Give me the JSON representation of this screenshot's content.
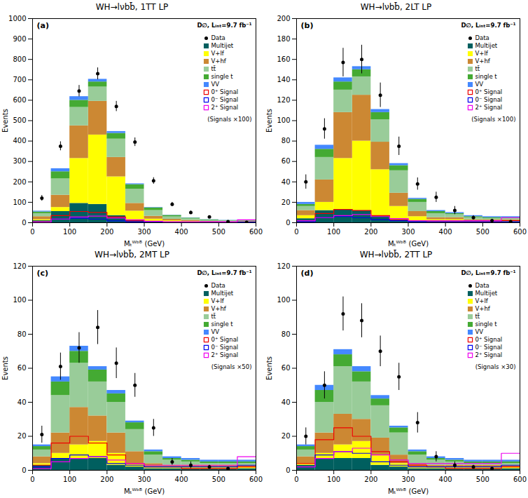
{
  "chart_data": [
    {
      "type": "bar",
      "stacked": true,
      "grid": false,
      "legend": "upper right",
      "title": "WH→lνbb̄, 1TT LP",
      "xlabel": "Mₜᵂᵇᵇ̄ (GeV)",
      "ylabel": "Events",
      "bins": [
        0,
        50,
        100,
        150,
        200,
        250,
        300,
        350,
        400,
        450,
        500,
        550,
        600
      ],
      "xlim": [
        0,
        600
      ],
      "xticks": [
        0,
        100,
        200,
        300,
        400,
        500,
        600
      ],
      "ylim": [
        0,
        1000
      ],
      "yticks": [
        0,
        100,
        200,
        300,
        400,
        500,
        600,
        700,
        800,
        900,
        1000
      ],
      "series": [
        {
          "name": "Data",
          "type": "scatter",
          "marker": "o",
          "color": "#000000",
          "values": [
            120,
            375,
            645,
            730,
            570,
            395,
            205,
            90,
            50,
            28,
            5,
            2
          ],
          "errors": [
            14,
            22,
            28,
            29,
            25,
            21,
            16,
            10,
            8,
            6,
            3,
            2
          ]
        },
        {
          "name": "Multijet",
          "type": "bar",
          "color": "#005f5f",
          "values": [
            10,
            55,
            95,
            90,
            35,
            12,
            6,
            4,
            3,
            2,
            2,
            2
          ]
        },
        {
          "name": "V+lf",
          "type": "bar",
          "color": "#ffff00",
          "values": [
            5,
            20,
            220,
            340,
            190,
            45,
            12,
            6,
            4,
            2,
            2,
            2
          ]
        },
        {
          "name": "V+hf",
          "type": "bar",
          "color": "#cc8833",
          "values": [
            15,
            60,
            160,
            165,
            95,
            38,
            14,
            7,
            5,
            3,
            2,
            2
          ]
        },
        {
          "name": "tt̄",
          "type": "bar",
          "color": "#99cc99",
          "values": [
            15,
            80,
            90,
            70,
            90,
            70,
            28,
            12,
            7,
            4,
            3,
            2
          ]
        },
        {
          "name": "single t",
          "type": "bar",
          "color": "#44aa33",
          "values": [
            8,
            35,
            35,
            25,
            28,
            22,
            13,
            7,
            4,
            3,
            2,
            2
          ]
        },
        {
          "name": "VV",
          "type": "bar",
          "color": "#4488ff",
          "values": [
            4,
            15,
            18,
            13,
            9,
            4,
            2,
            1,
            1,
            1,
            1,
            1
          ]
        },
        {
          "name": "0⁺ Signal",
          "type": "step",
          "color": "#ee0000",
          "values": [
            4,
            35,
            55,
            50,
            28,
            9,
            4,
            2,
            2,
            2,
            2,
            4
          ]
        },
        {
          "name": "0⁻ Signal",
          "type": "step",
          "color": "#0000ee",
          "values": [
            2,
            18,
            22,
            18,
            9,
            4,
            2,
            2,
            2,
            2,
            2,
            3
          ]
        },
        {
          "name": "2⁺ Signal",
          "type": "step",
          "color": "#ee00ee",
          "values": [
            4,
            18,
            28,
            32,
            23,
            14,
            7,
            5,
            5,
            5,
            5,
            14
          ]
        }
      ],
      "annotations": [
        "(a)",
        "D∅, Lᵢₙₜ=9.7 fb⁻¹",
        "(Signals ×100)"
      ]
    },
    {
      "type": "bar",
      "stacked": true,
      "grid": false,
      "legend": "upper right",
      "title": "WH→lνbb̄, 2LT LP",
      "xlabel": "Mₜᵂᵇᵇ̄ (GeV)",
      "ylabel": "Events",
      "bins": [
        0,
        50,
        100,
        150,
        200,
        250,
        300,
        350,
        400,
        450,
        500,
        550,
        600
      ],
      "xlim": [
        0,
        600
      ],
      "xticks": [
        0,
        100,
        200,
        300,
        400,
        500,
        600
      ],
      "ylim": [
        0,
        200
      ],
      "yticks": [
        0,
        20,
        40,
        60,
        80,
        100,
        120,
        140,
        160,
        180,
        200
      ],
      "series": [
        {
          "name": "Data",
          "type": "scatter",
          "marker": "o",
          "color": "#000000",
          "values": [
            40,
            92,
            157,
            160,
            125,
            75,
            38,
            25,
            12,
            5,
            2,
            1
          ],
          "errors": [
            7,
            10,
            14,
            14,
            12,
            9,
            6,
            5,
            4,
            2,
            1,
            1
          ]
        },
        {
          "name": "Multijet",
          "type": "bar",
          "color": "#005f5f",
          "values": [
            4,
            12,
            13,
            12,
            7,
            3,
            2,
            1,
            1,
            1,
            1,
            1
          ]
        },
        {
          "name": "V+lf",
          "type": "bar",
          "color": "#ffff00",
          "values": [
            3,
            8,
            50,
            68,
            45,
            13,
            4,
            2,
            2,
            1,
            1,
            1
          ]
        },
        {
          "name": "V+hf",
          "type": "bar",
          "color": "#cc8833",
          "values": [
            5,
            22,
            45,
            45,
            27,
            13,
            5,
            2,
            2,
            1,
            1,
            1
          ]
        },
        {
          "name": "tt̄",
          "type": "bar",
          "color": "#99cc99",
          "values": [
            4,
            22,
            22,
            18,
            22,
            22,
            9,
            4,
            3,
            2,
            1,
            1
          ]
        },
        {
          "name": "single t",
          "type": "bar",
          "color": "#44aa33",
          "values": [
            2,
            8,
            8,
            7,
            7,
            5,
            3,
            2,
            1,
            1,
            1,
            1
          ]
        },
        {
          "name": "VV",
          "type": "bar",
          "color": "#4488ff",
          "values": [
            2,
            4,
            4,
            3,
            3,
            2,
            1,
            1,
            1,
            1,
            1,
            1
          ]
        },
        {
          "name": "0⁺ Signal",
          "type": "step",
          "color": "#ee0000",
          "values": [
            2,
            9,
            13,
            12,
            7,
            3,
            2,
            1,
            1,
            1,
            1,
            2
          ]
        },
        {
          "name": "0⁻ Signal",
          "type": "step",
          "color": "#0000ee",
          "values": [
            1,
            5,
            6,
            5,
            3,
            2,
            1,
            1,
            1,
            1,
            1,
            1
          ]
        },
        {
          "name": "2⁺ Signal",
          "type": "step",
          "color": "#ee00ee",
          "values": [
            2,
            5,
            7,
            8,
            6,
            4,
            2,
            2,
            2,
            2,
            2,
            5
          ]
        }
      ],
      "annotations": [
        "(b)",
        "D∅, Lᵢₙₜ=9.7 fb⁻¹",
        "(Signals ×100)"
      ]
    },
    {
      "type": "bar",
      "stacked": true,
      "grid": false,
      "legend": "upper right",
      "title": "WH→lνbb̄, 2MT LP",
      "xlabel": "Mₜᵂᵇᵇ̄ (GeV)",
      "ylabel": "Events",
      "bins": [
        0,
        50,
        100,
        150,
        200,
        250,
        300,
        350,
        400,
        450,
        500,
        550,
        600
      ],
      "xlim": [
        0,
        600
      ],
      "xticks": [
        0,
        100,
        200,
        300,
        400,
        500,
        600
      ],
      "ylim": [
        0,
        120
      ],
      "yticks": [
        0,
        20,
        40,
        60,
        80,
        100,
        120
      ],
      "series": [
        {
          "name": "Data",
          "type": "scatter",
          "marker": "o",
          "color": "#000000",
          "values": [
            21,
            61,
            72,
            84,
            63,
            50,
            25,
            5,
            3,
            2,
            1,
            0
          ],
          "errors": [
            5,
            8,
            9,
            10,
            9,
            7,
            5,
            2,
            2,
            1,
            1,
            0
          ]
        },
        {
          "name": "Multijet",
          "type": "bar",
          "color": "#005f5f",
          "values": [
            3,
            7,
            7,
            7,
            3,
            2,
            1,
            1,
            1,
            1,
            1,
            1
          ]
        },
        {
          "name": "V+lf",
          "type": "bar",
          "color": "#ffff00",
          "values": [
            1,
            3,
            8,
            10,
            7,
            2,
            1,
            1,
            1,
            1,
            1,
            1
          ]
        },
        {
          "name": "V+hf",
          "type": "bar",
          "color": "#cc8833",
          "values": [
            4,
            12,
            22,
            15,
            12,
            7,
            2,
            1,
            1,
            1,
            1,
            1
          ]
        },
        {
          "name": "tt̄",
          "type": "bar",
          "color": "#99cc99",
          "values": [
            4,
            22,
            26,
            20,
            18,
            13,
            5,
            3,
            2,
            1,
            1,
            1
          ]
        },
        {
          "name": "single t",
          "type": "bar",
          "color": "#44aa33",
          "values": [
            2,
            8,
            7,
            7,
            5,
            4,
            2,
            1,
            1,
            1,
            1,
            1
          ]
        },
        {
          "name": "VV",
          "type": "bar",
          "color": "#4488ff",
          "values": [
            1,
            3,
            3,
            2,
            2,
            1,
            1,
            1,
            1,
            1,
            1,
            1
          ]
        },
        {
          "name": "0⁺ Signal",
          "type": "step",
          "color": "#ee0000",
          "values": [
            3,
            16,
            20,
            16,
            9,
            4,
            2,
            2,
            1,
            1,
            1,
            2
          ]
        },
        {
          "name": "0⁻ Signal",
          "type": "step",
          "color": "#0000ee",
          "values": [
            2,
            7,
            9,
            8,
            4,
            3,
            2,
            2,
            2,
            2,
            2,
            3
          ]
        },
        {
          "name": "2⁺ Signal",
          "type": "step",
          "color": "#ee00ee",
          "values": [
            1,
            5,
            7,
            8,
            6,
            4,
            3,
            3,
            3,
            3,
            3,
            8
          ]
        }
      ],
      "annotations": [
        "(c)",
        "D∅, Lᵢₙₜ=9.7 fb⁻¹",
        "(Signals ×50)"
      ]
    },
    {
      "type": "bar",
      "stacked": true,
      "grid": false,
      "legend": "upper right",
      "title": "WH→lνbb̄, 2TT LP",
      "xlabel": "Mₜᵂᵇᵇ̄ (GeV)",
      "ylabel": "Events",
      "bins": [
        0,
        50,
        100,
        150,
        200,
        250,
        300,
        350,
        400,
        450,
        500,
        550,
        600
      ],
      "xlim": [
        0,
        600
      ],
      "xticks": [
        0,
        100,
        200,
        300,
        400,
        500,
        600
      ],
      "ylim": [
        0,
        120
      ],
      "yticks": [
        0,
        20,
        40,
        60,
        80,
        100,
        120
      ],
      "series": [
        {
          "name": "Data",
          "type": "scatter",
          "marker": "o",
          "color": "#000000",
          "values": [
            20,
            50,
            92,
            88,
            70,
            55,
            28,
            8,
            3,
            2,
            1,
            0
          ],
          "errors": [
            5,
            8,
            10,
            10,
            9,
            8,
            6,
            3,
            2,
            1,
            1,
            0
          ]
        },
        {
          "name": "Multijet",
          "type": "bar",
          "color": "#005f5f",
          "values": [
            3,
            7,
            7,
            7,
            3,
            2,
            1,
            1,
            1,
            1,
            1,
            1
          ]
        },
        {
          "name": "V+lf",
          "type": "bar",
          "color": "#ffff00",
          "values": [
            1,
            3,
            8,
            10,
            6,
            2,
            1,
            1,
            1,
            1,
            1,
            1
          ]
        },
        {
          "name": "V+hf",
          "type": "bar",
          "color": "#cc8833",
          "values": [
            4,
            12,
            18,
            13,
            10,
            5,
            2,
            1,
            1,
            1,
            1,
            1
          ]
        },
        {
          "name": "tt̄",
          "type": "bar",
          "color": "#99cc99",
          "values": [
            4,
            18,
            28,
            22,
            19,
            13,
            5,
            3,
            2,
            1,
            1,
            1
          ]
        },
        {
          "name": "single t",
          "type": "bar",
          "color": "#44aa33",
          "values": [
            2,
            7,
            7,
            6,
            4,
            3,
            2,
            1,
            1,
            1,
            1,
            1
          ]
        },
        {
          "name": "VV",
          "type": "bar",
          "color": "#4488ff",
          "values": [
            1,
            3,
            3,
            3,
            2,
            1,
            1,
            1,
            1,
            1,
            1,
            1
          ]
        },
        {
          "name": "0⁺ Signal",
          "type": "step",
          "color": "#ee0000",
          "values": [
            4,
            18,
            25,
            20,
            11,
            5,
            3,
            2,
            1,
            1,
            1,
            2
          ]
        },
        {
          "name": "0⁻ Signal",
          "type": "step",
          "color": "#0000ee",
          "values": [
            2,
            9,
            11,
            10,
            5,
            3,
            2,
            2,
            2,
            2,
            2,
            3
          ]
        },
        {
          "name": "2⁺ Signal",
          "type": "step",
          "color": "#ee00ee",
          "values": [
            2,
            7,
            11,
            13,
            9,
            6,
            4,
            4,
            4,
            4,
            4,
            10
          ]
        }
      ],
      "annotations": [
        "(d)",
        "D∅, Lᵢₙₜ=9.7 fb⁻¹",
        "(Signals ×30)"
      ]
    }
  ]
}
